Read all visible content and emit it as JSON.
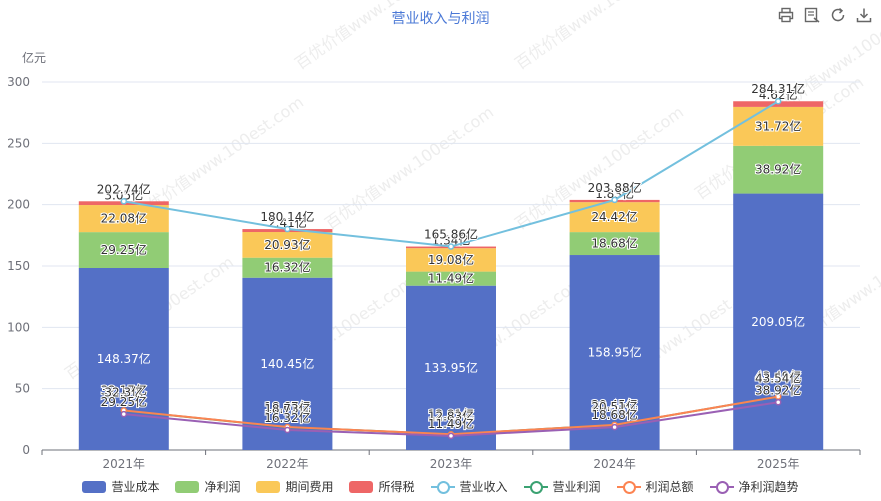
{
  "title": "营业收入与利润",
  "toolbar": {
    "icons": [
      "print-icon",
      "data-view-icon",
      "refresh-icon",
      "download-icon"
    ]
  },
  "watermark": "百优价值www.100est.com",
  "chart_data": {
    "type": "bar",
    "stacked": true,
    "categories": [
      "2021年",
      "2022年",
      "2023年",
      "2024年",
      "2025年"
    ],
    "ylabel": "亿元",
    "ylim": [
      0,
      300
    ],
    "yticks": [
      0,
      50,
      100,
      150,
      200,
      250,
      300
    ],
    "grid": true,
    "legend_position": "bottom",
    "unit_suffix": "亿",
    "bar_series": [
      {
        "name": "营业成本",
        "color": "#5470c6",
        "values": [
          148.37,
          140.45,
          133.95,
          158.95,
          209.05
        ]
      },
      {
        "name": "净利润",
        "color": "#91cc75",
        "values": [
          29.25,
          16.32,
          11.49,
          18.68,
          38.92
        ]
      },
      {
        "name": "期间费用",
        "color": "#fac858",
        "values": [
          22.08,
          20.93,
          19.08,
          24.42,
          31.72
        ]
      },
      {
        "name": "所得税",
        "color": "#ee6666",
        "values": [
          3.05,
          2.41,
          1.34,
          1.83,
          4.62
        ]
      }
    ],
    "line_series": [
      {
        "name": "营业收入",
        "color": "#73c0de",
        "values": [
          202.74,
          180.14,
          165.86,
          203.88,
          284.31
        ]
      },
      {
        "name": "营业利润",
        "color": "#3ba272",
        "values": [
          32.17,
          18.67,
          12.81,
          20.45,
          43.49
        ]
      },
      {
        "name": "利润总额",
        "color": "#fc8452",
        "values": [
          32.3,
          18.73,
          12.83,
          20.51,
          43.54
        ]
      },
      {
        "name": "净利润趋势",
        "color": "#9a60b4",
        "values": [
          29.25,
          16.32,
          11.49,
          18.68,
          38.92
        ]
      }
    ]
  }
}
